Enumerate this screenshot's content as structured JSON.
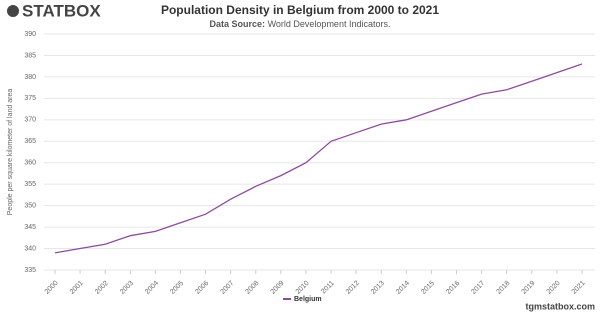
{
  "logo": "STATBOX",
  "watermark": "tgmstatbox.com",
  "chart_data": {
    "type": "line",
    "title": "Population Density in Belgium from 2000 to 2021",
    "subtitle_label": "Data Source:",
    "subtitle": "World Development Indicators.",
    "y_label": "People per square kilometer of land area",
    "x": [
      2000,
      2001,
      2002,
      2003,
      2004,
      2005,
      2006,
      2007,
      2008,
      2009,
      2010,
      2011,
      2012,
      2013,
      2014,
      2015,
      2016,
      2017,
      2018,
      2019,
      2020,
      2021
    ],
    "xlim": [
      2000,
      2021
    ],
    "series": [
      {
        "name": "Belgium",
        "color": "#8e4b9e",
        "values": [
          339,
          340,
          341,
          343,
          344,
          346,
          348,
          351.5,
          354.5,
          357,
          360,
          365,
          367,
          369,
          370,
          372,
          374,
          376,
          377,
          379,
          381,
          383
        ]
      }
    ],
    "ylim": [
      335,
      390
    ],
    "yticks": [
      335,
      340,
      345,
      350,
      355,
      360,
      365,
      370,
      375,
      380,
      385,
      390
    ],
    "grid": true,
    "legend": "bottom"
  }
}
